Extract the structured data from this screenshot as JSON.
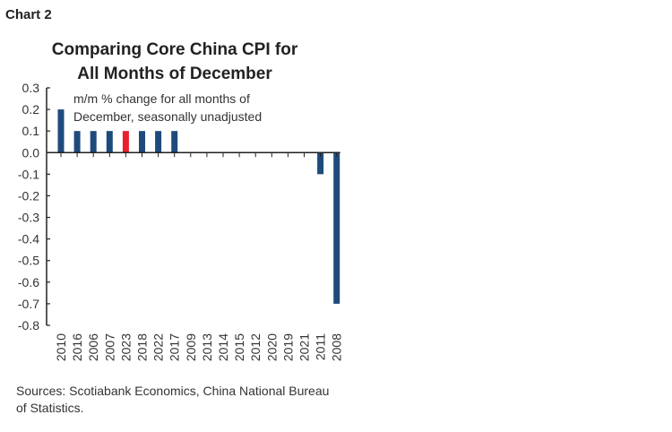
{
  "header": {
    "chart_label": "Chart 2"
  },
  "chart_data": {
    "type": "bar",
    "title": "Comparing Core China CPI for All Months of December",
    "title_lines": [
      "Comparing Core China CPI for",
      "All Months of December"
    ],
    "annotation_lines": [
      "m/m % change for all months of",
      "December, seasonally unadjusted"
    ],
    "categories": [
      "2010",
      "2016",
      "2006",
      "2007",
      "2023",
      "2018",
      "2022",
      "2017",
      "2009",
      "2013",
      "2014",
      "2015",
      "2012",
      "2020",
      "2019",
      "2021",
      "2011",
      "2008"
    ],
    "values": [
      0.2,
      0.1,
      0.1,
      0.1,
      0.1,
      0.1,
      0.1,
      0.1,
      0.0,
      0.0,
      0.0,
      0.0,
      0.0,
      0.0,
      0.0,
      0.0,
      -0.1,
      -0.7
    ],
    "highlight": "2023",
    "colors": {
      "bar": "#1f4a7c",
      "highlight": "#e8202e"
    },
    "ylim": [
      -0.8,
      0.3
    ],
    "yticks": [
      "0.3",
      "0.2",
      "0.1",
      "0.0",
      "-0.1",
      "-0.2",
      "-0.3",
      "-0.4",
      "-0.5",
      "-0.6",
      "-0.7",
      "-0.8"
    ],
    "xlabel": "",
    "ylabel": "",
    "grid": false
  },
  "footer": {
    "source": "Sources: Scotiabank Economics, China National Bureau of Statistics."
  }
}
